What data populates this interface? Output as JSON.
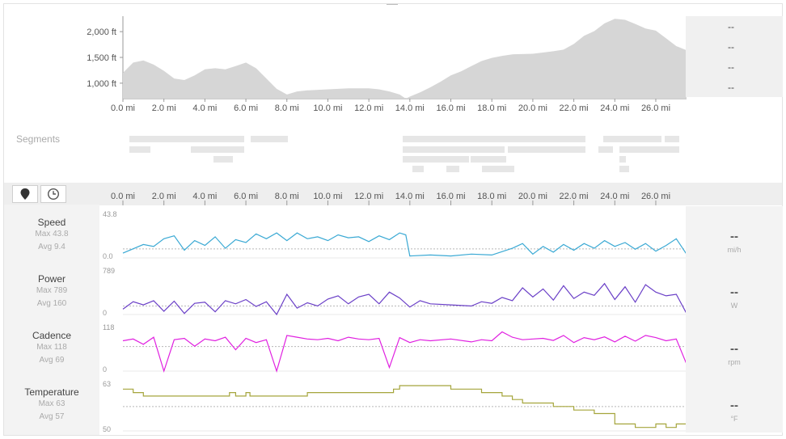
{
  "elevation": {
    "y_labels": [
      "2,000 ft",
      "1,500 ft",
      "1,000 ft"
    ],
    "side_values": [
      "--",
      "--",
      "--",
      "--"
    ]
  },
  "x_ticks": [
    "0.0 mi",
    "2.0 mi",
    "4.0 mi",
    "6.0 mi",
    "8.0 mi",
    "10.0 mi",
    "12.0 mi",
    "14.0 mi",
    "16.0 mi",
    "18.0 mi",
    "20.0 mi",
    "22.0 mi",
    "24.0 mi",
    "26.0 mi"
  ],
  "segments": {
    "label": "Segments"
  },
  "toolbar": {
    "distance_icon": "map-pin-icon",
    "time_icon": "clock-icon"
  },
  "metrics": [
    {
      "name": "Speed",
      "max": "Max 43.8",
      "avg": "Avg 9.4",
      "ymax_label": "43.8",
      "ymin_label": "0.0",
      "value": "--",
      "unit": "mi/h",
      "color": "#3aa9d4"
    },
    {
      "name": "Power",
      "max": "Max 789",
      "avg": "Avg 160",
      "ymax_label": "789",
      "ymin_label": "0",
      "value": "--",
      "unit": "W",
      "color": "#6a3fc7"
    },
    {
      "name": "Cadence",
      "max": "Max 118",
      "avg": "Avg 69",
      "ymax_label": "118",
      "ymin_label": "0",
      "value": "--",
      "unit": "rpm",
      "color": "#e020e0"
    },
    {
      "name": "Temperature",
      "max": "Max 63",
      "avg": "Avg 57",
      "ymax_label": "63",
      "ymin_label": "50",
      "value": "--",
      "unit": "°F",
      "color": "#a5a53c"
    }
  ],
  "chart_data": [
    {
      "type": "area",
      "xlabel": "",
      "ylabel": "",
      "xlim": [
        0,
        27.5
      ],
      "ylim": [
        700,
        2300
      ],
      "x": [
        0,
        0.5,
        1,
        1.5,
        2,
        2.5,
        3,
        3.5,
        4,
        4.5,
        5,
        5.5,
        6,
        6.5,
        7,
        7.5,
        8,
        8.5,
        9,
        10,
        11,
        12,
        12.5,
        13,
        13.5,
        13.8,
        14,
        14.5,
        15,
        15.5,
        16,
        16.5,
        17,
        17.5,
        18,
        18.5,
        19,
        20,
        21,
        21.5,
        22,
        22.5,
        23,
        23.5,
        24,
        24.5,
        25,
        25.5,
        26,
        26.5,
        27,
        27.5
      ],
      "series": [
        {
          "values": [
            1200,
            1400,
            1440,
            1360,
            1240,
            1090,
            1060,
            1150,
            1270,
            1290,
            1270,
            1330,
            1400,
            1290,
            1090,
            890,
            780,
            840,
            860,
            880,
            900,
            900,
            880,
            840,
            780,
            700,
            740,
            820,
            920,
            1030,
            1150,
            1230,
            1330,
            1430,
            1490,
            1530,
            1560,
            1570,
            1620,
            1650,
            1760,
            1920,
            2010,
            2160,
            2250,
            2230,
            2150,
            2060,
            2020,
            1870,
            1720,
            1640
          ]
        }
      ]
    },
    {
      "type": "line",
      "x_range": [
        0,
        27.5
      ],
      "series": [
        {
          "name": "Speed",
          "ylim": [
            0,
            43.8
          ],
          "avg": 9.4,
          "x": [
            0,
            1,
            1.5,
            2,
            2.5,
            3,
            3.5,
            4,
            4.5,
            5,
            5.5,
            6,
            6.5,
            7,
            7.5,
            8,
            8.5,
            9,
            9.5,
            10,
            10.5,
            11,
            11.5,
            12,
            12.5,
            13,
            13.5,
            13.8,
            14,
            15,
            16,
            17,
            18,
            19,
            19.5,
            20,
            20.5,
            21,
            21.5,
            22,
            22.5,
            23,
            23.5,
            24,
            24.5,
            25,
            25.5,
            26,
            26.5,
            27,
            27.5
          ],
          "values": [
            5,
            14,
            12,
            20,
            23,
            8,
            18,
            13,
            22,
            10,
            19,
            16,
            25,
            20,
            26,
            18,
            26,
            20,
            22,
            18,
            24,
            21,
            22,
            17,
            23,
            19,
            26,
            24,
            2,
            3,
            2,
            4,
            3,
            10,
            15,
            4,
            12,
            6,
            14,
            8,
            15,
            10,
            18,
            12,
            16,
            9,
            15,
            7,
            13,
            20,
            4
          ]
        },
        {
          "name": "Power",
          "ylim": [
            0,
            789
          ],
          "avg": 160,
          "x": [
            0,
            0.5,
            1,
            1.5,
            2,
            2.5,
            3,
            3.5,
            4,
            4.5,
            5,
            5.5,
            6,
            6.5,
            7,
            7.5,
            8,
            8.5,
            9,
            9.5,
            10,
            10.5,
            11,
            11.5,
            12,
            12.5,
            13,
            13.5,
            14,
            14.5,
            15,
            16,
            17,
            17.5,
            18,
            18.5,
            19,
            19.5,
            20,
            20.5,
            21,
            21.5,
            22,
            22.5,
            23,
            23.5,
            24,
            24.5,
            25,
            25.5,
            26,
            26.5,
            27,
            27.5
          ],
          "values": [
            100,
            240,
            180,
            260,
            60,
            250,
            20,
            210,
            230,
            50,
            260,
            200,
            280,
            150,
            240,
            0,
            380,
            120,
            220,
            160,
            290,
            350,
            200,
            330,
            380,
            200,
            420,
            310,
            140,
            260,
            200,
            180,
            160,
            240,
            210,
            320,
            260,
            500,
            330,
            480,
            270,
            540,
            300,
            420,
            360,
            580,
            280,
            520,
            230,
            560,
            420,
            350,
            380,
            20
          ]
        },
        {
          "name": "Cadence",
          "ylim": [
            0,
            118
          ],
          "avg": 69,
          "x": [
            0,
            0.5,
            1,
            1.5,
            2,
            2.5,
            3,
            3.5,
            4,
            4.5,
            5,
            5.5,
            6,
            6.5,
            7,
            7.5,
            8,
            8.5,
            9,
            9.5,
            10,
            10.5,
            11,
            11.5,
            12,
            12.5,
            13,
            13.5,
            14,
            14.5,
            15,
            16,
            17,
            17.5,
            18,
            18.5,
            19,
            19.5,
            20,
            20.5,
            21,
            21.5,
            22,
            22.5,
            23,
            23.5,
            24,
            24.5,
            25,
            25.5,
            26,
            26.5,
            27,
            27.5
          ],
          "values": [
            85,
            90,
            75,
            95,
            0,
            88,
            92,
            70,
            90,
            85,
            95,
            60,
            92,
            80,
            88,
            0,
            100,
            95,
            90,
            88,
            92,
            85,
            95,
            90,
            88,
            92,
            10,
            94,
            80,
            88,
            85,
            90,
            82,
            88,
            85,
            110,
            95,
            88,
            90,
            92,
            86,
            100,
            80,
            94,
            88,
            96,
            82,
            98,
            84,
            100,
            94,
            85,
            90,
            20
          ]
        },
        {
          "name": "Temperature",
          "ylim": [
            50,
            63
          ],
          "avg": 57,
          "x": [
            0,
            0.5,
            1,
            5,
            5.2,
            5.5,
            6,
            6.2,
            6.5,
            7,
            7.5,
            8,
            8.5,
            9,
            10,
            12,
            12.8,
            13.2,
            13.5,
            14,
            15,
            15.5,
            16,
            17,
            17.5,
            18,
            18.5,
            19,
            19.5,
            20,
            21,
            22,
            22.5,
            23,
            23.5,
            24,
            24.5,
            25,
            25.5,
            26,
            26.5,
            27,
            27.5
          ],
          "values": [
            62,
            61,
            60,
            60,
            61,
            60,
            61,
            60,
            60,
            60,
            60,
            60,
            60,
            61,
            61,
            61,
            61,
            62,
            63,
            63,
            63,
            63,
            62,
            62,
            61,
            61,
            60,
            59,
            58,
            58,
            57,
            56,
            56,
            55,
            55,
            52,
            52,
            51,
            51,
            52,
            51,
            52,
            52
          ]
        }
      ]
    }
  ]
}
